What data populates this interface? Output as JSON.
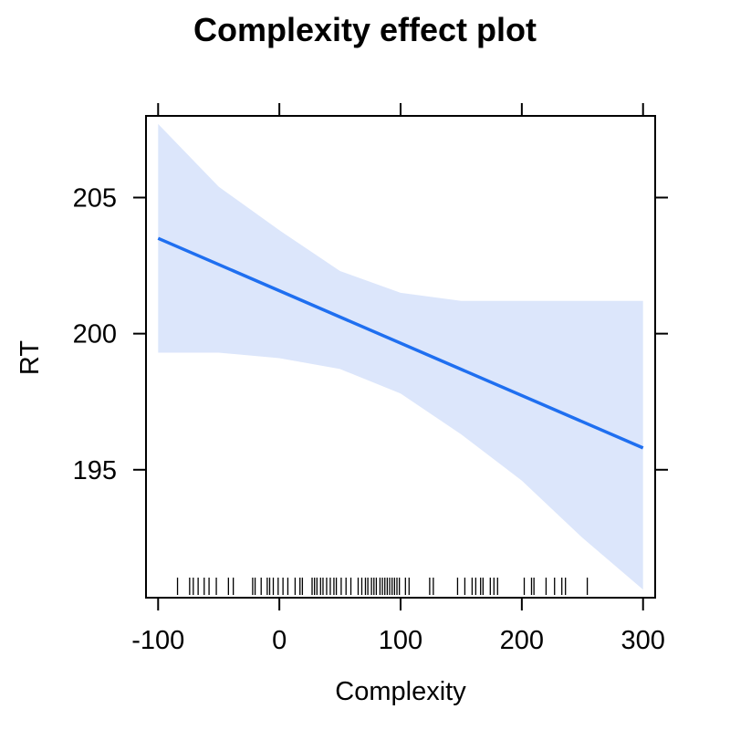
{
  "chart_data": {
    "type": "line",
    "title": "Complexity effect plot",
    "xlabel": "Complexity",
    "ylabel": "RT",
    "xlim": [
      -110,
      310
    ],
    "ylim": [
      190.3,
      208.0
    ],
    "x_ticks": [
      -100,
      0,
      100,
      200,
      300
    ],
    "x_tick_labels": [
      "-100",
      "0",
      "100",
      "200",
      "300"
    ],
    "y_ticks": [
      195,
      200,
      205
    ],
    "y_tick_labels": [
      "195",
      "200",
      "205"
    ],
    "grid": false,
    "legend": "none",
    "series": [
      {
        "x": [
          -100,
          300
        ],
        "y": [
          203.5,
          195.8
        ],
        "color": "#1f6ff0"
      }
    ],
    "confidence_band": {
      "x": [
        -100,
        -50,
        0,
        50,
        100,
        150,
        200,
        250,
        300
      ],
      "lower": [
        199.3,
        199.3,
        199.1,
        198.7,
        197.8,
        196.3,
        194.6,
        192.5,
        190.6
      ],
      "upper": [
        207.7,
        205.4,
        203.8,
        202.3,
        201.5,
        201.2,
        201.2,
        201.2,
        201.2
      ],
      "color": "#dce6fb"
    },
    "rug": [
      -84,
      -74,
      -71,
      -67,
      -62,
      -58,
      -52,
      -42,
      -38,
      -22,
      -20,
      -15,
      -10,
      -8,
      -5,
      -1,
      3,
      7,
      13,
      17,
      19,
      27,
      29,
      31,
      34,
      36,
      39,
      42,
      45,
      47,
      51,
      55,
      59,
      65,
      68,
      71,
      73,
      76,
      78,
      80,
      83,
      85,
      87,
      89,
      91,
      93,
      95,
      97,
      99,
      104,
      107,
      124,
      127,
      147,
      153,
      159,
      162,
      166,
      168,
      174,
      177,
      180,
      202,
      208,
      210,
      220,
      227,
      233,
      236,
      254
    ]
  }
}
